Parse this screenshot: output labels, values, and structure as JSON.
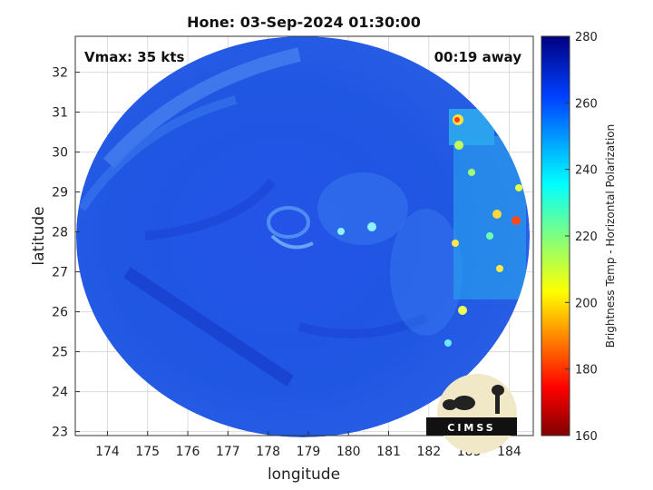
{
  "figure": {
    "title": "Hone: 03-Sep-2024 01:30:00",
    "vmax_label": "Vmax: 35 kts",
    "time_label": "00:19 away",
    "xlabel": "longitude",
    "ylabel": "latitude",
    "colorbar_label": "Brightness Temp - Horizontal Polarization",
    "logo_text": "CIMSS"
  },
  "axes": {
    "x_ticks": [
      "174",
      "175",
      "176",
      "177",
      "178",
      "179",
      "180",
      "181",
      "182",
      "183",
      "184"
    ],
    "y_ticks": [
      "23",
      "24",
      "25",
      "26",
      "27",
      "28",
      "29",
      "30",
      "31",
      "32"
    ],
    "colorbar_ticks": [
      "160",
      "180",
      "200",
      "220",
      "240",
      "260",
      "280"
    ],
    "grid": true,
    "xlim": [
      173.2,
      184.6
    ],
    "ylim": [
      22.9,
      32.9
    ],
    "clim": [
      160,
      280
    ]
  },
  "colors": {
    "background_field": "#2156e6",
    "colormap": "jet"
  }
}
